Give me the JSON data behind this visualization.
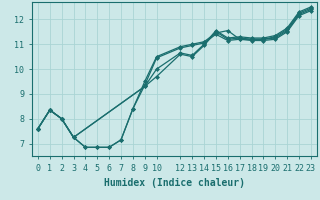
{
  "bg_color": "#cce8e8",
  "grid_color": "#aad4d4",
  "line_color": "#1a6e6e",
  "marker_style": "D",
  "marker_size": 2.0,
  "line_width": 0.9,
  "xlabel": "Humidex (Indice chaleur)",
  "xlabel_fontsize": 7,
  "tick_fontsize": 6,
  "xlim": [
    -0.5,
    23.5
  ],
  "ylim": [
    6.5,
    12.7
  ],
  "yticks": [
    7,
    8,
    9,
    10,
    11,
    12
  ],
  "xticks": [
    0,
    1,
    2,
    3,
    4,
    5,
    6,
    7,
    8,
    9,
    10,
    12,
    13,
    14,
    15,
    16,
    17,
    18,
    19,
    20,
    21,
    22,
    23
  ],
  "series": [
    {
      "x": [
        0,
        1,
        2,
        3,
        4,
        5,
        6,
        7,
        8,
        9,
        10,
        12,
        13,
        14,
        15,
        16,
        17,
        18,
        19,
        20,
        21,
        22,
        23
      ],
      "y": [
        7.6,
        8.35,
        8.0,
        7.25,
        6.85,
        6.85,
        6.85,
        7.15,
        8.4,
        9.35,
        10.45,
        10.85,
        10.95,
        11.05,
        11.4,
        11.15,
        11.2,
        11.15,
        11.15,
        11.2,
        11.5,
        12.15,
        12.35
      ]
    },
    {
      "x": [
        0,
        1,
        2,
        3,
        4,
        5,
        6,
        7,
        8,
        9,
        10,
        12,
        13,
        14,
        15,
        16,
        17,
        18,
        19,
        20,
        21,
        22,
        23
      ],
      "y": [
        7.6,
        8.35,
        8.0,
        7.25,
        6.85,
        6.85,
        6.85,
        7.15,
        8.4,
        9.5,
        10.5,
        10.9,
        11.0,
        11.1,
        11.45,
        11.55,
        11.2,
        11.2,
        11.2,
        11.25,
        11.55,
        12.2,
        12.4
      ]
    },
    {
      "x": [
        0,
        1,
        2,
        3,
        9,
        10,
        12,
        13,
        14,
        15,
        16,
        17,
        18,
        19,
        20,
        21,
        22,
        23
      ],
      "y": [
        7.6,
        8.35,
        8.0,
        7.25,
        9.3,
        9.7,
        10.6,
        10.5,
        10.95,
        11.5,
        11.2,
        11.25,
        11.2,
        11.2,
        11.3,
        11.6,
        12.25,
        12.45
      ]
    },
    {
      "x": [
        0,
        1,
        2,
        3,
        9,
        10,
        12,
        13,
        14,
        15,
        16,
        17,
        18,
        19,
        20,
        21,
        22,
        23
      ],
      "y": [
        7.6,
        8.35,
        8.0,
        7.25,
        9.3,
        10.0,
        10.65,
        10.55,
        11.0,
        11.55,
        11.25,
        11.3,
        11.25,
        11.25,
        11.35,
        11.65,
        12.3,
        12.5
      ]
    }
  ]
}
